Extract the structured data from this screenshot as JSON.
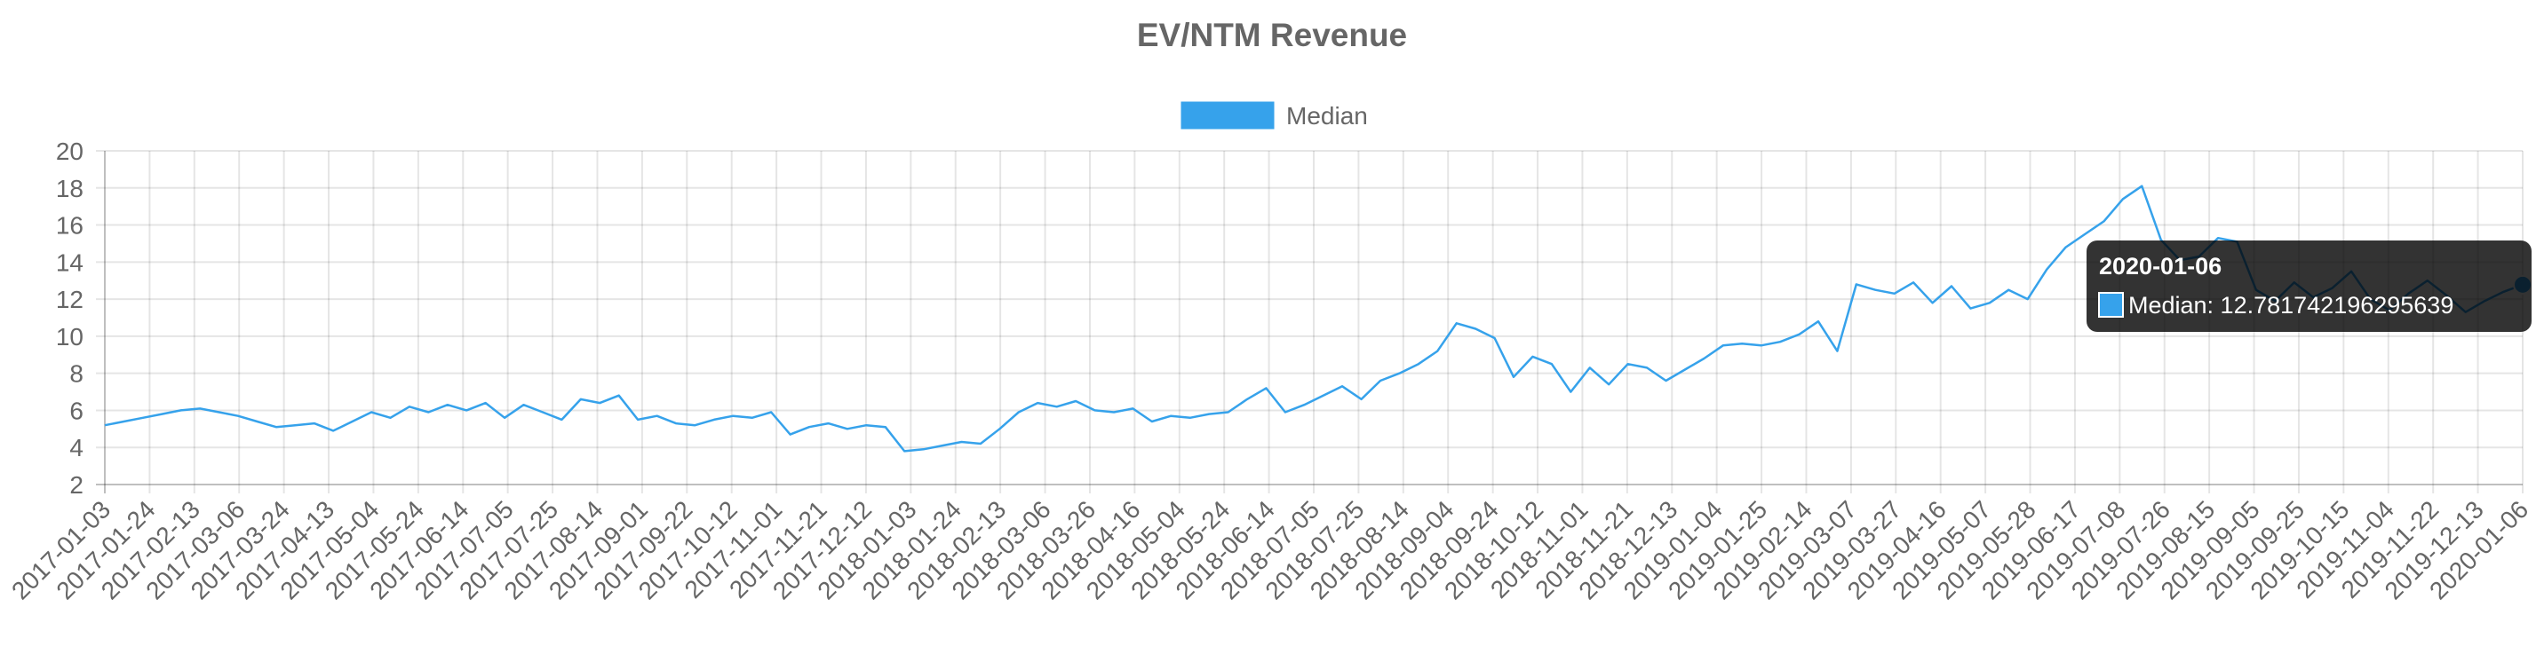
{
  "chart_data": {
    "type": "line",
    "title": "EV/NTM Revenue",
    "xlabel": "",
    "ylabel": "",
    "ylim": [
      2,
      20
    ],
    "yticks": [
      "2",
      "4",
      "6",
      "8",
      "10",
      "12",
      "14",
      "16",
      "18",
      "20"
    ],
    "grid": true,
    "legend_position": "top-center",
    "x_tick_labels": [
      "2017-01-03",
      "2017-01-24",
      "2017-02-13",
      "2017-03-06",
      "2017-03-24",
      "2017-04-13",
      "2017-05-04",
      "2017-05-24",
      "2017-06-14",
      "2017-07-05",
      "2017-07-25",
      "2017-08-14",
      "2017-09-01",
      "2017-09-22",
      "2017-10-12",
      "2017-11-01",
      "2017-11-21",
      "2017-12-12",
      "2018-01-03",
      "2018-01-24",
      "2018-02-13",
      "2018-03-06",
      "2018-03-26",
      "2018-04-16",
      "2018-05-04",
      "2018-05-24",
      "2018-06-14",
      "2018-07-05",
      "2018-07-25",
      "2018-08-14",
      "2018-09-04",
      "2018-09-24",
      "2018-10-12",
      "2018-11-01",
      "2018-11-21",
      "2018-12-13",
      "2019-01-04",
      "2019-01-25",
      "2019-02-14",
      "2019-03-07",
      "2019-03-27",
      "2019-04-16",
      "2019-05-07",
      "2019-05-28",
      "2019-06-17",
      "2019-07-08",
      "2019-07-26",
      "2019-08-15",
      "2019-09-05",
      "2019-09-25",
      "2019-10-15",
      "2019-11-04",
      "2019-11-22",
      "2019-12-13",
      "2020-01-06"
    ],
    "series": [
      {
        "name": "Median",
        "color": "#36a2eb",
        "values": [
          5.2,
          5.4,
          5.6,
          5.8,
          6.0,
          6.1,
          5.9,
          5.7,
          5.4,
          5.1,
          5.2,
          5.3,
          4.9,
          5.4,
          5.9,
          5.6,
          6.2,
          5.9,
          6.3,
          6.0,
          6.4,
          5.6,
          6.3,
          5.9,
          5.5,
          6.6,
          6.4,
          6.8,
          5.5,
          5.7,
          5.3,
          5.2,
          5.5,
          5.7,
          5.6,
          5.9,
          4.7,
          5.1,
          5.3,
          5.0,
          5.2,
          5.1,
          3.8,
          3.9,
          4.1,
          4.3,
          4.2,
          5.0,
          5.9,
          6.4,
          6.2,
          6.5,
          6.0,
          5.9,
          6.1,
          5.4,
          5.7,
          5.6,
          5.8,
          5.9,
          6.6,
          7.2,
          5.9,
          6.3,
          6.8,
          7.3,
          6.6,
          7.6,
          8.0,
          8.5,
          9.2,
          10.7,
          10.4,
          9.9,
          7.8,
          8.9,
          8.5,
          7.0,
          8.3,
          7.4,
          8.5,
          8.3,
          7.6,
          8.2,
          8.8,
          9.5,
          9.6,
          9.5,
          9.7,
          10.1,
          10.8,
          9.2,
          12.8,
          12.5,
          12.3,
          12.9,
          11.8,
          12.7,
          11.5,
          11.8,
          12.5,
          12.0,
          13.6,
          14.8,
          15.5,
          16.2,
          17.4,
          18.1,
          15.2,
          14.1,
          14.3,
          15.3,
          15.1,
          12.5,
          11.9,
          12.9,
          12.1,
          12.6,
          13.5,
          12.0,
          11.4,
          12.3,
          13.0,
          12.2,
          11.3,
          11.9,
          12.4,
          12.78
        ]
      }
    ]
  },
  "tooltip": {
    "title": "2020-01-06",
    "label": "Median: 12.781742196295639",
    "swatch_color": "#36a2eb"
  }
}
